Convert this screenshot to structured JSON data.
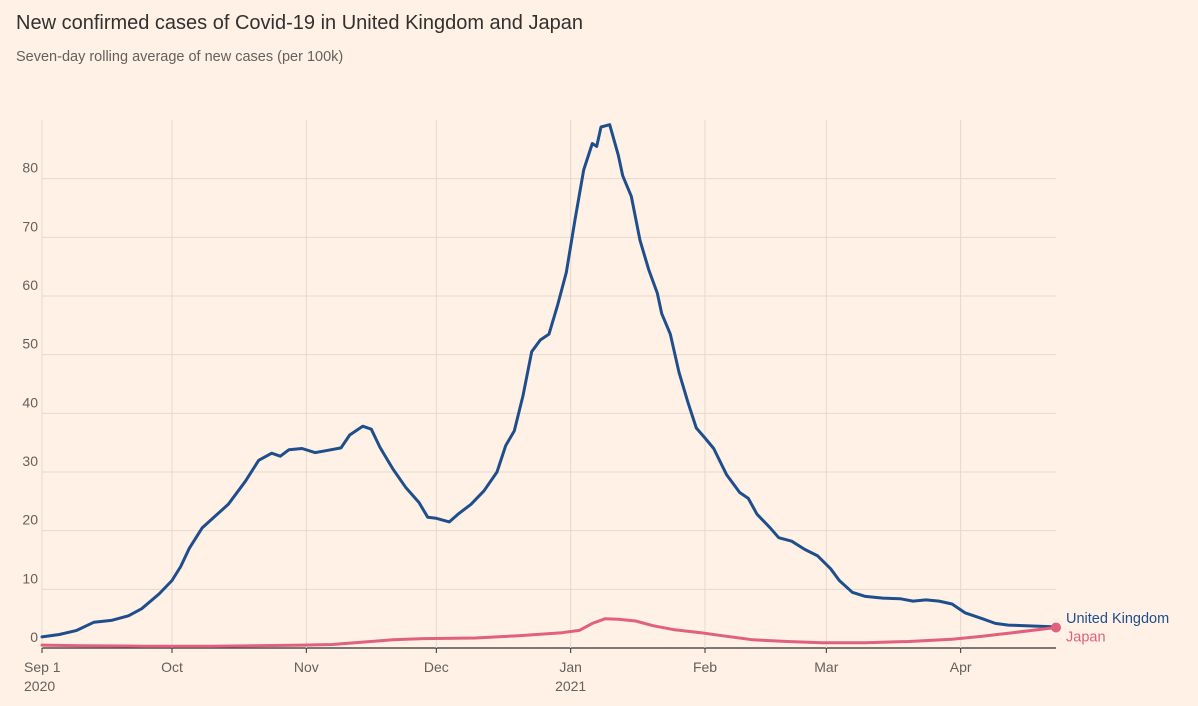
{
  "title": "New confirmed cases of Covid-19 in United Kingdom and Japan",
  "subtitle": "Seven-day rolling average of new cases (per 100k)",
  "chart_data": {
    "type": "line",
    "title": "New confirmed cases of Covid-19 in United Kingdom and Japan",
    "subtitle": "Seven-day rolling average of new cases (per 100k)",
    "xlabel": "",
    "ylabel": "",
    "x_range": [
      "2020-09-01",
      "2021-04-23"
    ],
    "ylim": [
      0,
      90
    ],
    "y_ticks": [
      0,
      10,
      20,
      30,
      40,
      50,
      60,
      70,
      80
    ],
    "x_ticks": [
      {
        "date": "2020-09-01",
        "label": "Sep 1",
        "sublabel": "2020"
      },
      {
        "date": "2020-10-01",
        "label": "Oct",
        "sublabel": ""
      },
      {
        "date": "2020-11-01",
        "label": "Nov",
        "sublabel": ""
      },
      {
        "date": "2020-12-01",
        "label": "Dec",
        "sublabel": ""
      },
      {
        "date": "2021-01-01",
        "label": "Jan",
        "sublabel": "2021"
      },
      {
        "date": "2021-02-01",
        "label": "Feb",
        "sublabel": ""
      },
      {
        "date": "2021-03-01",
        "label": "Mar",
        "sublabel": ""
      },
      {
        "date": "2021-04-01",
        "label": "Apr",
        "sublabel": ""
      }
    ],
    "grid": true,
    "legend": "end-of-line labels",
    "series": [
      {
        "name": "United Kingdom",
        "color": "#1f4e8c",
        "points": [
          [
            "2020-09-01",
            1.9
          ],
          [
            "2020-09-05",
            2.3
          ],
          [
            "2020-09-09",
            3.0
          ],
          [
            "2020-09-13",
            4.4
          ],
          [
            "2020-09-17",
            4.7
          ],
          [
            "2020-09-21",
            5.5
          ],
          [
            "2020-09-24",
            6.7
          ],
          [
            "2020-09-28",
            9.2
          ],
          [
            "2020-10-01",
            11.5
          ],
          [
            "2020-10-03",
            13.9
          ],
          [
            "2020-10-05",
            17.0
          ],
          [
            "2020-10-08",
            20.5
          ],
          [
            "2020-10-11",
            22.5
          ],
          [
            "2020-10-14",
            24.5
          ],
          [
            "2020-10-18",
            28.5
          ],
          [
            "2020-10-21",
            32.0
          ],
          [
            "2020-10-24",
            33.2
          ],
          [
            "2020-10-26",
            32.7
          ],
          [
            "2020-10-28",
            33.8
          ],
          [
            "2020-10-31",
            34.0
          ],
          [
            "2020-11-03",
            33.3
          ],
          [
            "2020-11-06",
            33.7
          ],
          [
            "2020-11-09",
            34.1
          ],
          [
            "2020-11-11",
            36.3
          ],
          [
            "2020-11-14",
            37.8
          ],
          [
            "2020-11-16",
            37.3
          ],
          [
            "2020-11-18",
            34.2
          ],
          [
            "2020-11-21",
            30.5
          ],
          [
            "2020-11-24",
            27.3
          ],
          [
            "2020-11-27",
            24.8
          ],
          [
            "2020-11-29",
            22.3
          ],
          [
            "2020-12-01",
            22.1
          ],
          [
            "2020-12-04",
            21.5
          ],
          [
            "2020-12-06",
            22.8
          ],
          [
            "2020-12-09",
            24.5
          ],
          [
            "2020-12-12",
            26.8
          ],
          [
            "2020-12-15",
            30.0
          ],
          [
            "2020-12-17",
            34.5
          ],
          [
            "2020-12-19",
            37.0
          ],
          [
            "2020-12-21",
            43.0
          ],
          [
            "2020-12-23",
            50.5
          ],
          [
            "2020-12-25",
            52.5
          ],
          [
            "2020-12-27",
            53.5
          ],
          [
            "2020-12-29",
            58.5
          ],
          [
            "2020-12-31",
            64.0
          ],
          [
            "2021-01-02",
            73.0
          ],
          [
            "2021-01-04",
            81.5
          ],
          [
            "2021-01-06",
            86.0
          ],
          [
            "2021-01-07",
            85.5
          ],
          [
            "2021-01-08",
            88.8
          ],
          [
            "2021-01-10",
            89.2
          ],
          [
            "2021-01-12",
            84.0
          ],
          [
            "2021-01-13",
            80.5
          ],
          [
            "2021-01-15",
            77.0
          ],
          [
            "2021-01-17",
            69.5
          ],
          [
            "2021-01-19",
            64.5
          ],
          [
            "2021-01-21",
            60.5
          ],
          [
            "2021-01-22",
            57.0
          ],
          [
            "2021-01-24",
            53.5
          ],
          [
            "2021-01-26",
            47.0
          ],
          [
            "2021-01-28",
            42.0
          ],
          [
            "2021-01-30",
            37.5
          ],
          [
            "2021-02-01",
            35.8
          ],
          [
            "2021-02-03",
            34.0
          ],
          [
            "2021-02-06",
            29.5
          ],
          [
            "2021-02-09",
            26.5
          ],
          [
            "2021-02-11",
            25.5
          ],
          [
            "2021-02-13",
            22.8
          ],
          [
            "2021-02-16",
            20.5
          ],
          [
            "2021-02-18",
            18.8
          ],
          [
            "2021-02-21",
            18.2
          ],
          [
            "2021-02-24",
            16.8
          ],
          [
            "2021-02-27",
            15.7
          ],
          [
            "2021-03-02",
            13.5
          ],
          [
            "2021-03-04",
            11.5
          ],
          [
            "2021-03-07",
            9.5
          ],
          [
            "2021-03-10",
            8.8
          ],
          [
            "2021-03-14",
            8.5
          ],
          [
            "2021-03-18",
            8.4
          ],
          [
            "2021-03-21",
            8.0
          ],
          [
            "2021-03-24",
            8.2
          ],
          [
            "2021-03-27",
            8.0
          ],
          [
            "2021-03-30",
            7.5
          ],
          [
            "2021-04-02",
            6.0
          ],
          [
            "2021-04-06",
            5.0
          ],
          [
            "2021-04-09",
            4.2
          ],
          [
            "2021-04-12",
            3.9
          ],
          [
            "2021-04-16",
            3.8
          ],
          [
            "2021-04-23",
            3.6
          ]
        ]
      },
      {
        "name": "Japan",
        "color": "#e0607e",
        "points": [
          [
            "2020-09-01",
            0.5
          ],
          [
            "2020-09-10",
            0.4
          ],
          [
            "2020-09-25",
            0.3
          ],
          [
            "2020-10-10",
            0.3
          ],
          [
            "2020-10-20",
            0.4
          ],
          [
            "2020-10-31",
            0.5
          ],
          [
            "2020-11-07",
            0.6
          ],
          [
            "2020-11-14",
            1.0
          ],
          [
            "2020-11-21",
            1.4
          ],
          [
            "2020-11-28",
            1.6
          ],
          [
            "2020-12-10",
            1.7
          ],
          [
            "2020-12-20",
            2.1
          ],
          [
            "2020-12-30",
            2.6
          ],
          [
            "2021-01-03",
            3.0
          ],
          [
            "2021-01-06",
            4.2
          ],
          [
            "2021-01-09",
            5.0
          ],
          [
            "2021-01-12",
            4.9
          ],
          [
            "2021-01-16",
            4.6
          ],
          [
            "2021-01-20",
            3.8
          ],
          [
            "2021-01-25",
            3.1
          ],
          [
            "2021-01-31",
            2.6
          ],
          [
            "2021-02-06",
            2.0
          ],
          [
            "2021-02-12",
            1.4
          ],
          [
            "2021-02-20",
            1.1
          ],
          [
            "2021-02-28",
            0.9
          ],
          [
            "2021-03-10",
            0.9
          ],
          [
            "2021-03-20",
            1.1
          ],
          [
            "2021-03-30",
            1.5
          ],
          [
            "2021-04-06",
            2.0
          ],
          [
            "2021-04-13",
            2.6
          ],
          [
            "2021-04-23",
            3.5
          ]
        ]
      }
    ]
  }
}
